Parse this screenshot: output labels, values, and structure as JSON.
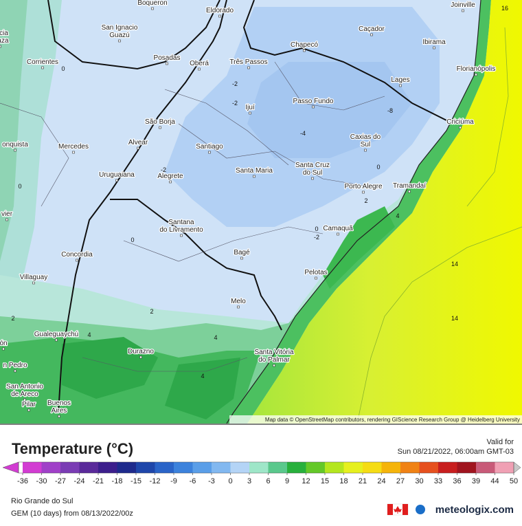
{
  "map": {
    "places": [
      {
        "lines": [
          "Boqueron"
        ]
      },
      {
        "lines": [
          "Eldorado"
        ]
      },
      {
        "lines": [
          "Joinville"
        ]
      },
      {
        "lines": [
          "San Ignacio",
          "Guazú"
        ]
      },
      {
        "lines": [
          "encia",
          "Plaza"
        ]
      },
      {
        "lines": [
          "Caçador"
        ]
      },
      {
        "lines": [
          "Chapecó"
        ]
      },
      {
        "lines": [
          "Ibirama"
        ]
      },
      {
        "lines": [
          "Posadas"
        ]
      },
      {
        "lines": [
          "Oberá"
        ]
      },
      {
        "lines": [
          "Três Passos"
        ]
      },
      {
        "lines": [
          "Corrientes"
        ]
      },
      {
        "lines": [
          "Florianópolis"
        ]
      },
      {
        "lines": [
          "Lages"
        ]
      },
      {
        "lines": [
          "Passo Fundo"
        ]
      },
      {
        "lines": [
          "Ijuí"
        ]
      },
      {
        "lines": [
          "São Borja"
        ]
      },
      {
        "lines": [
          "Criciúma"
        ]
      },
      {
        "lines": [
          "onquista"
        ]
      },
      {
        "lines": [
          "Mercedes"
        ]
      },
      {
        "lines": [
          "Alvear"
        ]
      },
      {
        "lines": [
          "Santiago"
        ]
      },
      {
        "lines": [
          "Caxias do",
          "Sul"
        ]
      },
      {
        "lines": [
          "Santa Maria"
        ]
      },
      {
        "lines": [
          "Santa Cruz",
          "do Sul"
        ]
      },
      {
        "lines": [
          "Uruguaiana"
        ]
      },
      {
        "lines": [
          "Alegrete"
        ]
      },
      {
        "lines": [
          "Porto Alegre"
        ]
      },
      {
        "lines": [
          "Tramandaí"
        ]
      },
      {
        "lines": [
          "vier"
        ]
      },
      {
        "lines": [
          "Santana",
          "do Livramento"
        ]
      },
      {
        "lines": [
          "Camaquã"
        ]
      },
      {
        "lines": [
          "Concordia"
        ]
      },
      {
        "lines": [
          "Bagé"
        ]
      },
      {
        "lines": [
          "Villaguay"
        ]
      },
      {
        "lines": [
          "Pelotas"
        ]
      },
      {
        "lines": [
          "Melo"
        ]
      },
      {
        "lines": [
          "Gualeguaychú"
        ]
      },
      {
        "lines": [
          "Durazno"
        ]
      },
      {
        "lines": [
          "Santa Vitória",
          "do Palmar"
        ]
      },
      {
        "lines": [
          "n Pedro"
        ]
      },
      {
        "lines": [
          "ón"
        ]
      },
      {
        "lines": [
          "San Antonio",
          "de Areco"
        ]
      },
      {
        "lines": [
          "Pilar"
        ]
      },
      {
        "lines": [
          "Buenos",
          "Aires"
        ]
      }
    ],
    "contour_labels": [
      "0",
      "-2",
      "-2",
      "-4",
      "-8",
      "-2",
      "0",
      "2",
      "0",
      "4",
      "0",
      "-2",
      "0",
      "14",
      "14",
      "2",
      "2",
      "4",
      "4",
      "4",
      "16"
    ],
    "attribution": "Map data © OpenStreetMap contributors, rendering GIScience Research Group @ Heidelberg University"
  },
  "legend": {
    "title": "Temperature (°C)",
    "ticks": [
      -36,
      -30,
      -27,
      -24,
      -21,
      -18,
      -15,
      -12,
      -9,
      -6,
      -3,
      0,
      3,
      6,
      9,
      12,
      15,
      18,
      21,
      24,
      27,
      30,
      33,
      36,
      39,
      44,
      50
    ],
    "colors": [
      "#d23cd2",
      "#a040c8",
      "#7a3cb4",
      "#5a2a9a",
      "#3c1e8c",
      "#1e2a8c",
      "#1e46aa",
      "#2a64c8",
      "#3c82dc",
      "#5a9ee8",
      "#82b8f0",
      "#b4d4f6",
      "#9ee6c8",
      "#5ac88c",
      "#28b03c",
      "#64c828",
      "#b4e61e",
      "#e6f01e",
      "#f5dc14",
      "#f5b40a",
      "#f08214",
      "#e6501e",
      "#c81e1e",
      "#a0141e",
      "#c85a78",
      "#f0a0b4",
      "#c8c8c8"
    ]
  },
  "valid": {
    "label": "Valid for",
    "time": "Sun 08/21/2022, 06:00am GMT-03"
  },
  "footer": {
    "region": "Rio Grande do Sul",
    "model": "GEM (10 days) from 08/13/2022/00z",
    "brand": "meteologix.com"
  }
}
